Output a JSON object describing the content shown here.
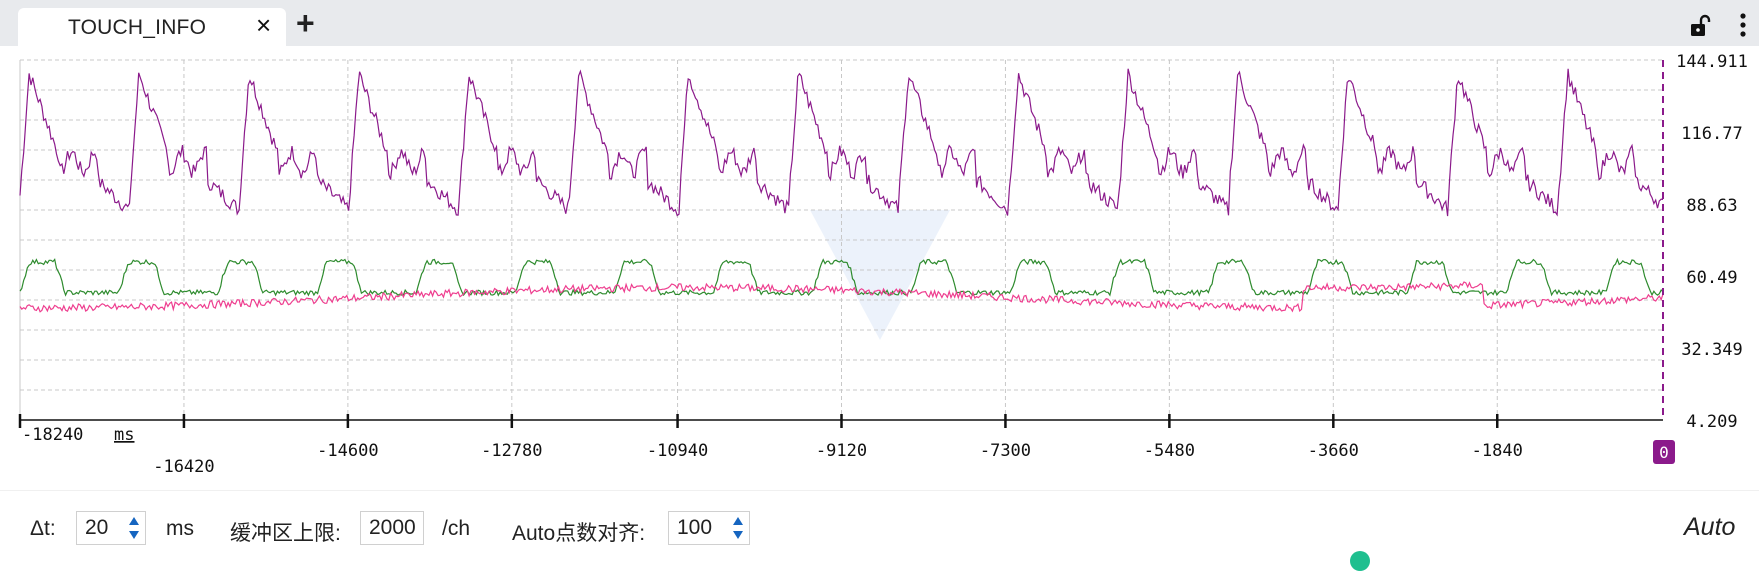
{
  "tab": {
    "label": "TOUCH_INFO",
    "close": "×",
    "add": "+"
  },
  "chart_data": {
    "type": "line",
    "x_unit": "ms",
    "x_ticks": [
      "-18240",
      "-16420",
      "-14600",
      "-12780",
      "-10940",
      "-9120",
      "-7300",
      "-5480",
      "-3660",
      "-1840"
    ],
    "y_ticks": [
      "144.911",
      "116.77",
      "88.63",
      "60.49",
      "32.349",
      "4.209"
    ],
    "ylim": [
      4.209,
      144.911
    ],
    "xlim": [
      -18240,
      0
    ],
    "cursor_label": "0",
    "grid": true,
    "series": [
      {
        "color": "#8b1a8b",
        "base": 110,
        "amp": 30,
        "period": 1220,
        "kind": "spike"
      },
      {
        "color": "#2e8b2e",
        "base": 56,
        "amp": 12,
        "period": 1100,
        "kind": "plateau"
      },
      {
        "color": "#ee3e8f",
        "base": 52,
        "amp": 4,
        "period": 900,
        "kind": "noise"
      }
    ]
  },
  "controls": {
    "dt_label": "Δt:",
    "dt_value": "20",
    "dt_unit": "ms",
    "buffer_label": "缓冲区上限:",
    "buffer_value": "2000",
    "buffer_unit": "/ch",
    "auto_align_label": "Auto点数对齐:",
    "auto_align_value": "100",
    "auto_button": "Auto"
  },
  "colors": {
    "accent": "#8b1a8b",
    "dot": "#1fbf8f",
    "spin_arrow": "#1565c0"
  }
}
